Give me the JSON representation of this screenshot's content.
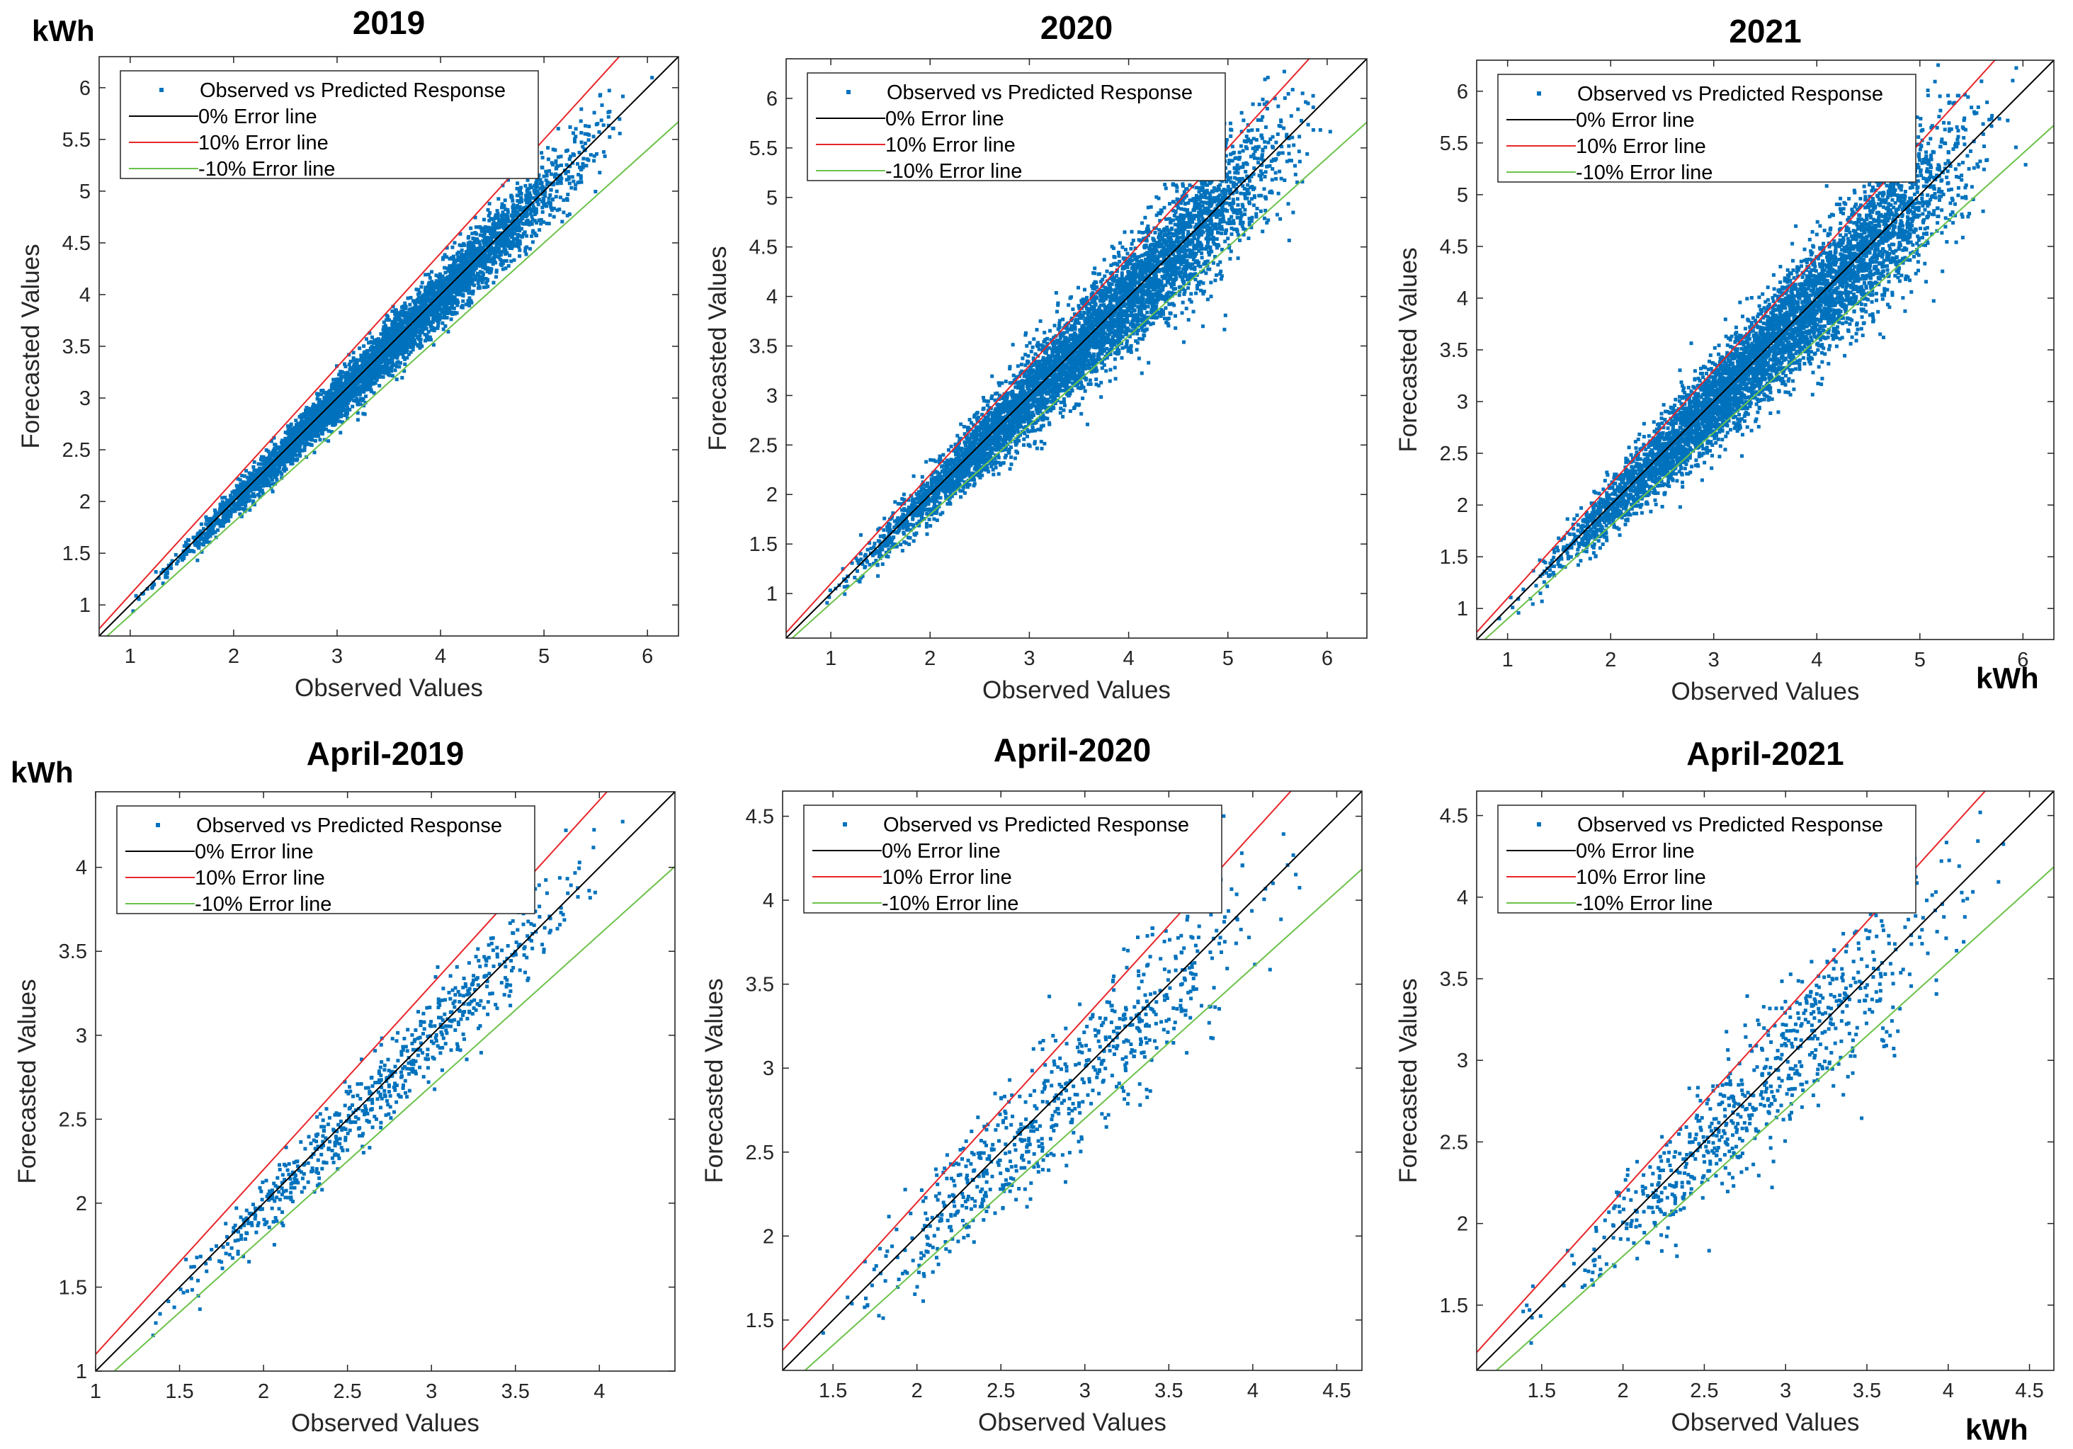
{
  "colors": {
    "points": "#0072BD",
    "zero_line": "#000000",
    "plus10_line": "#E8262A",
    "minus10_line": "#6CC24A"
  },
  "units": {
    "top": "kWh",
    "bottom": "kWh",
    "top_right": "kWh",
    "bottom_right": "kWh"
  },
  "legend": {
    "observed": "Observed vs Predicted Response",
    "zero": "0% Error line",
    "plus10": "10% Error line",
    "minus10": "-10% Error line"
  },
  "chart_data": [
    {
      "type": "scatter",
      "title": "2019",
      "xlabel": "Observed Values",
      "ylabel": "Forecasted Values",
      "xlim": [
        0.7,
        6.3
      ],
      "ylim": [
        0.7,
        6.3
      ],
      "xticks": [
        "1",
        "2",
        "3",
        "4",
        "5",
        "6"
      ],
      "yticks": [
        "1",
        "1.5",
        "2",
        "2.5",
        "3",
        "3.5",
        "4",
        "4.5",
        "5",
        "5.5",
        "6"
      ],
      "series": [
        {
          "name": "Observed vs Predicted Response",
          "kind": "points",
          "count": 5000,
          "x_range": [
            0.75,
            6.2
          ],
          "noise_rel": 0.035
        },
        {
          "name": "0% Error line",
          "kind": "line",
          "slope": 1.0
        },
        {
          "name": "10% Error line",
          "kind": "line",
          "slope": 1.1
        },
        {
          "name": "-10% Error line",
          "kind": "line",
          "slope": 0.9
        }
      ]
    },
    {
      "type": "scatter",
      "title": "2020",
      "xlabel": "Observed Values",
      "ylabel": "Forecasted Values",
      "xlim": [
        0.55,
        6.4
      ],
      "ylim": [
        0.55,
        6.4
      ],
      "xticks": [
        "1",
        "2",
        "3",
        "4",
        "5",
        "6"
      ],
      "yticks": [
        "1",
        "1.5",
        "2",
        "2.5",
        "3",
        "3.5",
        "4",
        "4.5",
        "5",
        "5.5",
        "6"
      ],
      "series": [
        {
          "name": "Observed vs Predicted Response",
          "kind": "points",
          "count": 5500,
          "x_range": [
            0.6,
            6.4
          ],
          "noise_rel": 0.065
        },
        {
          "name": "0% Error line",
          "kind": "line",
          "slope": 1.0
        },
        {
          "name": "10% Error line",
          "kind": "line",
          "slope": 1.1
        },
        {
          "name": "-10% Error line",
          "kind": "line",
          "slope": 0.9
        }
      ]
    },
    {
      "type": "scatter",
      "title": "2021",
      "xlabel": "Observed Values",
      "ylabel": "Forecasted Values",
      "xlim": [
        0.7,
        6.3
      ],
      "ylim": [
        0.7,
        6.3
      ],
      "xticks": [
        "1",
        "2",
        "3",
        "4",
        "5",
        "6"
      ],
      "yticks": [
        "1",
        "1.5",
        "2",
        "2.5",
        "3",
        "3.5",
        "4",
        "4.5",
        "5",
        "5.5",
        "6"
      ],
      "series": [
        {
          "name": "Observed vs Predicted Response",
          "kind": "points",
          "count": 5500,
          "x_range": [
            0.7,
            6.3
          ],
          "noise_rel": 0.07
        },
        {
          "name": "0% Error line",
          "kind": "line",
          "slope": 1.0
        },
        {
          "name": "10% Error line",
          "kind": "line",
          "slope": 1.1
        },
        {
          "name": "-10% Error line",
          "kind": "line",
          "slope": 0.9
        }
      ]
    },
    {
      "type": "scatter",
      "title": "April-2019",
      "xlabel": "Observed Values",
      "ylabel": "Forecasted Values",
      "xlim": [
        1.0,
        4.45
      ],
      "ylim": [
        1.0,
        4.45
      ],
      "xticks": [
        "1",
        "1.5",
        "2",
        "2.5",
        "3",
        "3.5",
        "4"
      ],
      "yticks": [
        "1",
        "1.5",
        "2",
        "2.5",
        "3",
        "3.5",
        "4"
      ],
      "series": [
        {
          "name": "Observed vs Predicted Response",
          "kind": "points",
          "count": 700,
          "x_range": [
            1.0,
            4.4
          ],
          "noise_rel": 0.045
        },
        {
          "name": "0% Error line",
          "kind": "line",
          "slope": 1.0
        },
        {
          "name": "10% Error line",
          "kind": "line",
          "slope": 1.1
        },
        {
          "name": "-10% Error line",
          "kind": "line",
          "slope": 0.9
        }
      ]
    },
    {
      "type": "scatter",
      "title": "April-2020",
      "xlabel": "Observed Values",
      "ylabel": "Forecasted Values",
      "xlim": [
        1.2,
        4.65
      ],
      "ylim": [
        1.2,
        4.65
      ],
      "xticks": [
        "1.5",
        "2",
        "2.5",
        "3",
        "3.5",
        "4",
        "4.5"
      ],
      "yticks": [
        "1.5",
        "2",
        "2.5",
        "3",
        "3.5",
        "4",
        "4.5"
      ],
      "series": [
        {
          "name": "Observed vs Predicted Response",
          "kind": "points",
          "count": 700,
          "x_range": [
            1.2,
            4.6
          ],
          "noise_rel": 0.07
        },
        {
          "name": "0% Error line",
          "kind": "line",
          "slope": 1.0
        },
        {
          "name": "10% Error line",
          "kind": "line",
          "slope": 1.1
        },
        {
          "name": "-10% Error line",
          "kind": "line",
          "slope": 0.9
        }
      ]
    },
    {
      "type": "scatter",
      "title": "April-2021",
      "xlabel": "Observed Values",
      "ylabel": "Forecasted Values",
      "xlim": [
        1.1,
        4.65
      ],
      "ylim": [
        1.1,
        4.65
      ],
      "xticks": [
        "1.5",
        "2",
        "2.5",
        "3",
        "3.5",
        "4",
        "4.5"
      ],
      "yticks": [
        "1.5",
        "2",
        "2.5",
        "3",
        "3.5",
        "4",
        "4.5"
      ],
      "series": [
        {
          "name": "Observed vs Predicted Response",
          "kind": "points",
          "count": 750,
          "x_range": [
            1.1,
            4.6
          ],
          "noise_rel": 0.075
        },
        {
          "name": "0% Error line",
          "kind": "line",
          "slope": 1.0
        },
        {
          "name": "10% Error line",
          "kind": "line",
          "slope": 1.1
        },
        {
          "name": "-10% Error line",
          "kind": "line",
          "slope": 0.9
        }
      ]
    }
  ]
}
